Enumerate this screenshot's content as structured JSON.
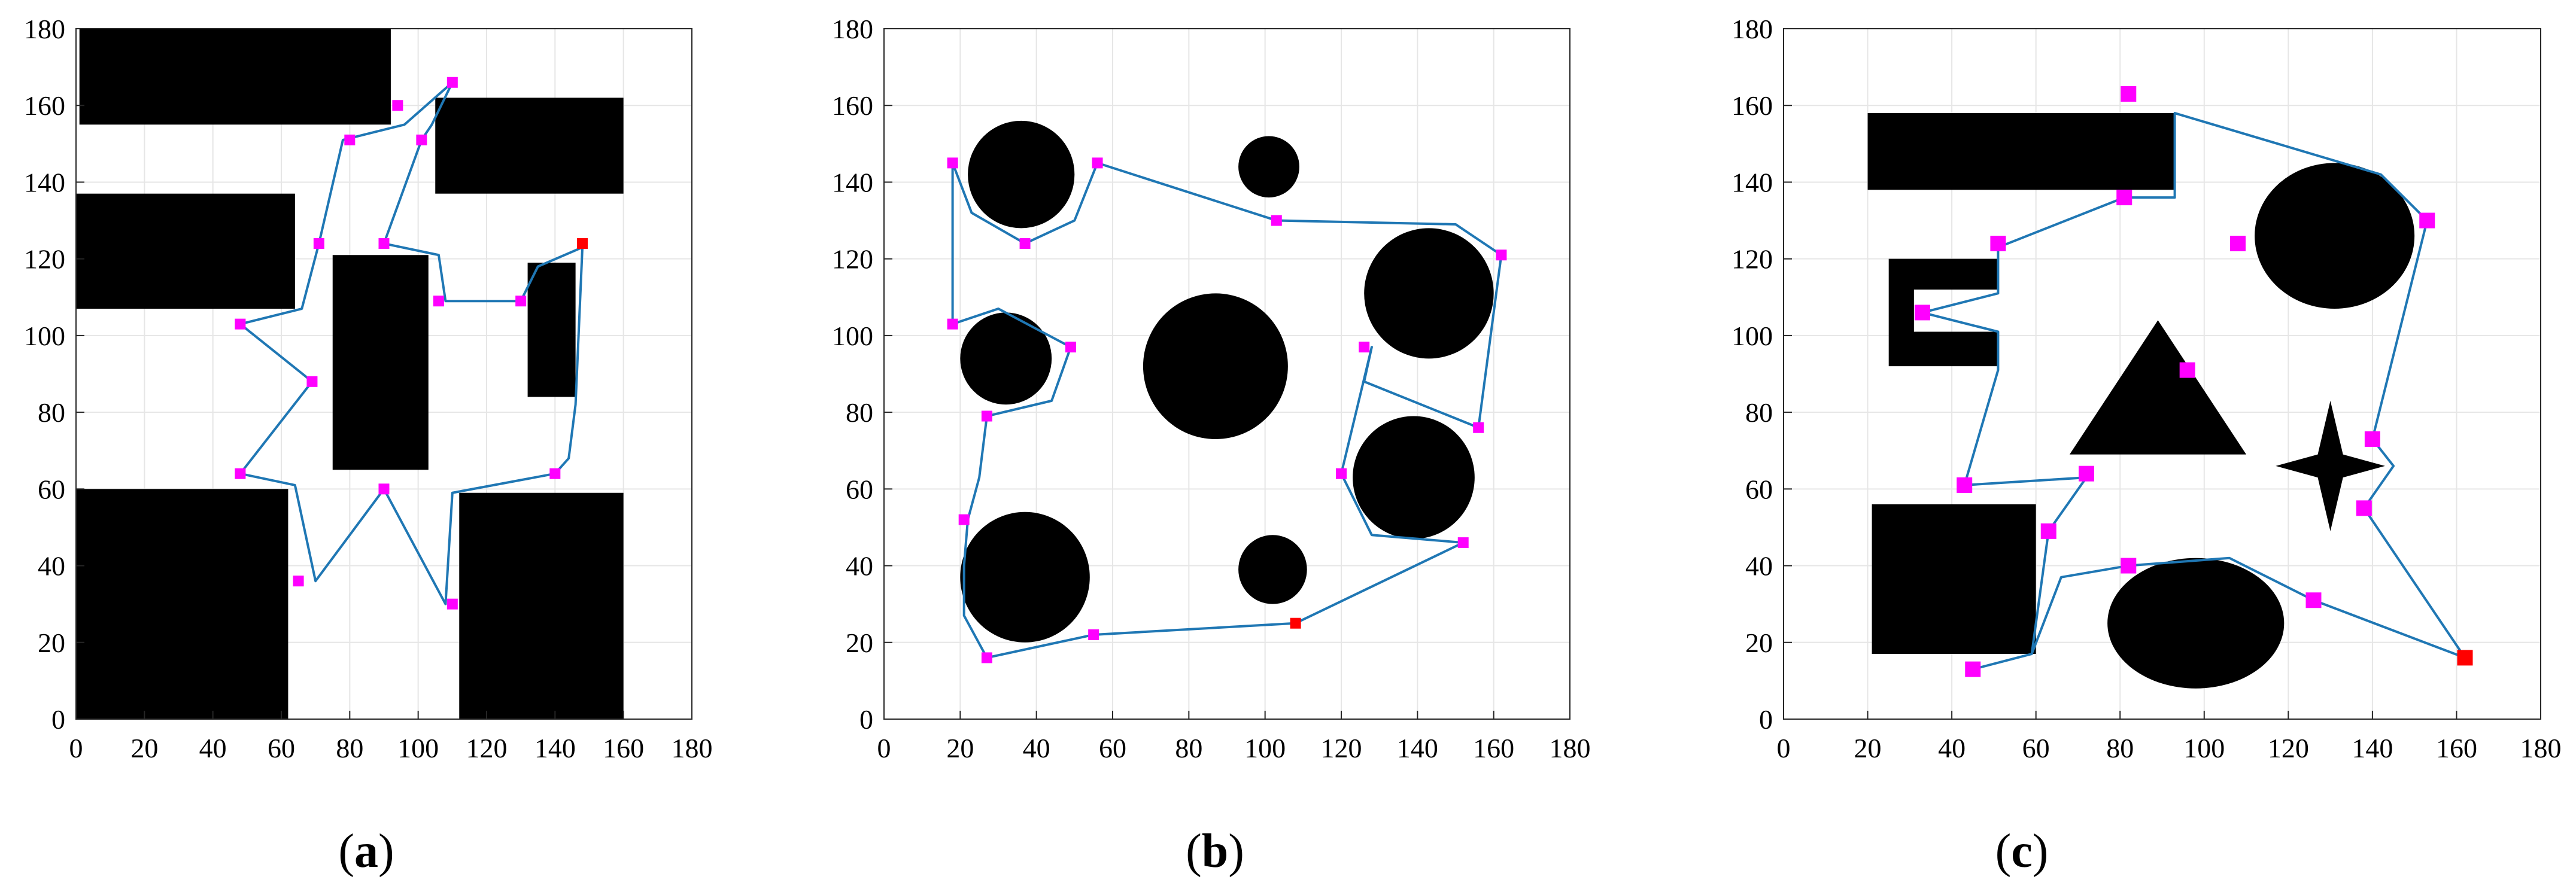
{
  "figure": {
    "panels": [
      {
        "label": "(a)",
        "label_letter": "a"
      },
      {
        "label": "(b)",
        "label_letter": "b"
      },
      {
        "label": "(c)",
        "label_letter": "c"
      }
    ]
  },
  "colors": {
    "obstacle": "#000000",
    "path": "#1f77b4",
    "waypoint": "#ff00ff",
    "start": "#ff0000",
    "grid": "#e6e6e6",
    "axis": "#262626"
  },
  "chart_data": [
    {
      "type": "scatter",
      "title": "",
      "xlabel": "",
      "ylabel": "",
      "xlim": [
        0,
        180
      ],
      "ylim": [
        0,
        180
      ],
      "xticks": [
        0,
        20,
        40,
        60,
        80,
        100,
        120,
        140,
        160,
        180
      ],
      "yticks": [
        0,
        20,
        40,
        60,
        80,
        100,
        120,
        140,
        160,
        180
      ],
      "grid": true,
      "obstacles": [
        {
          "shape": "rect",
          "x": [
            1,
            92
          ],
          "y": [
            155,
            180
          ]
        },
        {
          "shape": "rect",
          "x": [
            105,
            160
          ],
          "y": [
            137,
            162
          ]
        },
        {
          "shape": "rect",
          "x": [
            0,
            64
          ],
          "y": [
            107,
            137
          ]
        },
        {
          "shape": "rect",
          "x": [
            75,
            103
          ],
          "y": [
            65,
            121
          ]
        },
        {
          "shape": "rect",
          "x": [
            132,
            146
          ],
          "y": [
            84,
            119
          ]
        },
        {
          "shape": "rect",
          "x": [
            0,
            62
          ],
          "y": [
            0,
            60
          ]
        },
        {
          "shape": "rect",
          "x": [
            112,
            160
          ],
          "y": [
            0,
            59
          ]
        }
      ],
      "path": [
        [
          148,
          123
        ],
        [
          146,
          82
        ],
        [
          144,
          68
        ],
        [
          140,
          64
        ],
        [
          110,
          59
        ],
        [
          108,
          30
        ],
        [
          90,
          60
        ],
        [
          70,
          36
        ],
        [
          64,
          61
        ],
        [
          48,
          64
        ],
        [
          69,
          88
        ],
        [
          48,
          103
        ],
        [
          66,
          107
        ],
        [
          71,
          124
        ],
        [
          78,
          151
        ],
        [
          96,
          155
        ],
        [
          110,
          166
        ],
        [
          104,
          155
        ],
        [
          101,
          151
        ],
        [
          90,
          124
        ],
        [
          106,
          121
        ],
        [
          108,
          109
        ],
        [
          130,
          109
        ],
        [
          135,
          118
        ],
        [
          148,
          123
        ]
      ],
      "waypoints": [
        [
          110,
          166
        ],
        [
          94,
          160
        ],
        [
          80,
          151
        ],
        [
          101,
          151
        ],
        [
          71,
          124
        ],
        [
          90,
          124
        ],
        [
          48,
          103
        ],
        [
          106,
          109
        ],
        [
          130,
          109
        ],
        [
          69,
          88
        ],
        [
          48,
          64
        ],
        [
          90,
          60
        ],
        [
          140,
          64
        ],
        [
          65,
          36
        ],
        [
          110,
          30
        ]
      ],
      "start": [
        148,
        124
      ]
    },
    {
      "type": "scatter",
      "title": "",
      "xlabel": "",
      "ylabel": "",
      "xlim": [
        0,
        180
      ],
      "ylim": [
        0,
        180
      ],
      "xticks": [
        0,
        20,
        40,
        60,
        80,
        100,
        120,
        140,
        160,
        180
      ],
      "yticks": [
        0,
        20,
        40,
        60,
        80,
        100,
        120,
        140,
        160,
        180
      ],
      "grid": true,
      "obstacles": [
        {
          "shape": "circle",
          "cx": 36,
          "cy": 142,
          "r": 14
        },
        {
          "shape": "circle",
          "cx": 101,
          "cy": 144,
          "r": 8
        },
        {
          "shape": "circle",
          "cx": 32,
          "cy": 94,
          "r": 12
        },
        {
          "shape": "circle",
          "cx": 87,
          "cy": 92,
          "r": 19
        },
        {
          "shape": "circle",
          "cx": 143,
          "cy": 111,
          "r": 17
        },
        {
          "shape": "circle",
          "cx": 139,
          "cy": 63,
          "r": 16
        },
        {
          "shape": "circle",
          "cx": 37,
          "cy": 37,
          "r": 17
        },
        {
          "shape": "circle",
          "cx": 102,
          "cy": 39,
          "r": 9
        }
      ],
      "path": [
        [
          108,
          25
        ],
        [
          55,
          22
        ],
        [
          27,
          16
        ],
        [
          21,
          27
        ],
        [
          21,
          40
        ],
        [
          22,
          52
        ],
        [
          25,
          63
        ],
        [
          27,
          79
        ],
        [
          44,
          83
        ],
        [
          49,
          97
        ],
        [
          30,
          107
        ],
        [
          18,
          103
        ],
        [
          18,
          145
        ],
        [
          23,
          132
        ],
        [
          37,
          124
        ],
        [
          50,
          130
        ],
        [
          56,
          145
        ],
        [
          103,
          130
        ],
        [
          150,
          129
        ],
        [
          162,
          121
        ],
        [
          156,
          76
        ],
        [
          126,
          88
        ],
        [
          128,
          97
        ],
        [
          120,
          64
        ],
        [
          128,
          48
        ],
        [
          152,
          46
        ],
        [
          108,
          25
        ]
      ],
      "waypoints": [
        [
          18,
          145
        ],
        [
          56,
          145
        ],
        [
          37,
          124
        ],
        [
          103,
          130
        ],
        [
          162,
          121
        ],
        [
          18,
          103
        ],
        [
          49,
          97
        ],
        [
          126,
          97
        ],
        [
          27,
          79
        ],
        [
          156,
          76
        ],
        [
          120,
          64
        ],
        [
          21,
          52
        ],
        [
          152,
          46
        ],
        [
          55,
          22
        ],
        [
          27,
          16
        ]
      ],
      "start": [
        108,
        25
      ]
    },
    {
      "type": "scatter",
      "title": "",
      "xlabel": "",
      "ylabel": "",
      "xlim": [
        0,
        180
      ],
      "ylim": [
        0,
        180
      ],
      "xticks": [
        0,
        20,
        40,
        60,
        80,
        100,
        120,
        140,
        160,
        180
      ],
      "yticks": [
        0,
        20,
        40,
        60,
        80,
        100,
        120,
        140,
        160,
        180
      ],
      "grid": true,
      "obstacles": [
        {
          "shape": "rect",
          "x": [
            20,
            93
          ],
          "y": [
            138,
            158
          ]
        },
        {
          "shape": "circle",
          "cx": 131,
          "cy": 126,
          "r": 19
        },
        {
          "shape": "cshape",
          "x": [
            25,
            51
          ],
          "y": [
            92,
            120
          ],
          "inner_x": [
            31,
            51
          ],
          "inner_y": [
            101,
            112
          ]
        },
        {
          "shape": "triangle",
          "points": [
            [
              68,
              69
            ],
            [
              89,
              104
            ],
            [
              110,
              69
            ]
          ]
        },
        {
          "shape": "star",
          "cx": 130,
          "cy": 66,
          "rx": 13,
          "ry": 17,
          "w": 3
        },
        {
          "shape": "rect",
          "x": [
            21,
            60
          ],
          "y": [
            17,
            56
          ]
        },
        {
          "shape": "ellipse",
          "cx": 98,
          "cy": 25,
          "rx": 21,
          "ry": 17
        }
      ],
      "path": [
        [
          162,
          16
        ],
        [
          138,
          55
        ],
        [
          145,
          66
        ],
        [
          140,
          73
        ],
        [
          153,
          130
        ],
        [
          142,
          142
        ],
        [
          93,
          158
        ],
        [
          93,
          136
        ],
        [
          81,
          136
        ],
        [
          51,
          123
        ],
        [
          51,
          111
        ],
        [
          33,
          106
        ],
        [
          51,
          101
        ],
        [
          51,
          91
        ],
        [
          43,
          61
        ],
        [
          72,
          63
        ],
        [
          63,
          49
        ],
        [
          59,
          17
        ],
        [
          45,
          13
        ],
        [
          59,
          17
        ],
        [
          66,
          37
        ],
        [
          82,
          40
        ],
        [
          106,
          42
        ],
        [
          126,
          31
        ],
        [
          162,
          16
        ]
      ],
      "waypoints": [
        [
          82,
          163
        ],
        [
          153,
          130
        ],
        [
          81,
          136
        ],
        [
          51,
          124
        ],
        [
          108,
          124
        ],
        [
          33,
          106
        ],
        [
          96,
          91
        ],
        [
          140,
          73
        ],
        [
          72,
          64
        ],
        [
          43,
          61
        ],
        [
          63,
          49
        ],
        [
          138,
          55
        ],
        [
          82,
          40
        ],
        [
          126,
          31
        ],
        [
          45,
          13
        ]
      ],
      "start": [
        162,
        16
      ]
    }
  ]
}
